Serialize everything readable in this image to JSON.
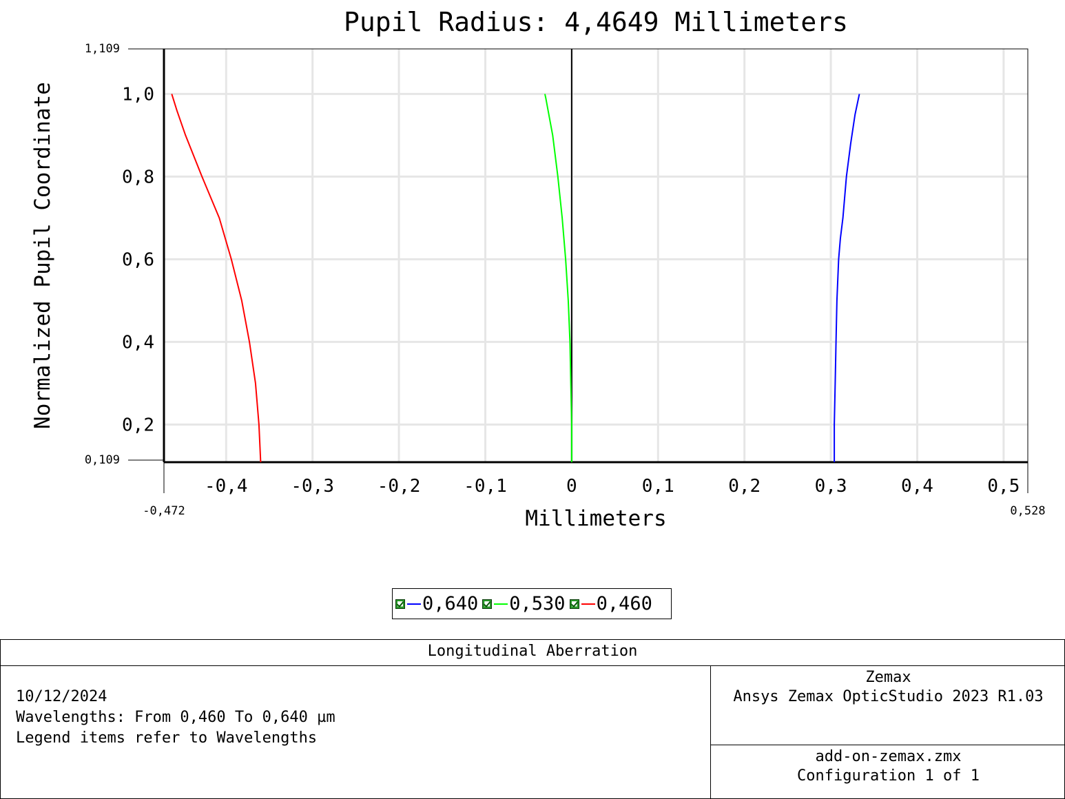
{
  "chart_data": {
    "type": "line",
    "title": "Pupil Radius: 4,4649 Millimeters",
    "xlabel": "Millimeters",
    "ylabel": "Normalized Pupil Coordinate",
    "xlim": [
      -0.472,
      0.528
    ],
    "ylim": [
      0.109,
      1.109
    ],
    "x_min_label": "-0,472",
    "x_max_label": "0,528",
    "y_min_label": "0,109",
    "y_max_label": "1,109",
    "x_ticks": [
      -0.4,
      -0.3,
      -0.2,
      -0.1,
      0,
      0.1,
      0.2,
      0.3,
      0.4,
      0.5
    ],
    "x_tick_labels": [
      "-0,4",
      "-0,3",
      "-0,2",
      "-0,1",
      "0",
      "0,1",
      "0,2",
      "0,3",
      "0,4",
      "0,5"
    ],
    "y_ticks": [
      0.2,
      0.4,
      0.6,
      0.8,
      1.0
    ],
    "y_tick_labels": [
      "0,2",
      "0,4",
      "0,6",
      "0,8",
      "1,0"
    ],
    "grid": true,
    "series": [
      {
        "name": "0,640",
        "color": "#0000ff",
        "x": [
          0.304,
          0.304,
          0.305,
          0.306,
          0.307,
          0.309,
          0.311,
          0.314,
          0.318,
          0.323,
          0.328,
          0.333
        ],
        "y": [
          0.109,
          0.2,
          0.3,
          0.4,
          0.5,
          0.6,
          0.65,
          0.7,
          0.8,
          0.88,
          0.95,
          1.0
        ]
      },
      {
        "name": "0,530",
        "color": "#00ff00",
        "x": [
          0.0,
          0.0,
          -0.001,
          -0.002,
          -0.004,
          -0.007,
          -0.011,
          -0.016,
          -0.022,
          -0.03,
          -0.031
        ],
        "y": [
          0.109,
          0.2,
          0.3,
          0.4,
          0.5,
          0.6,
          0.7,
          0.8,
          0.9,
          0.99,
          1.0
        ]
      },
      {
        "name": "0,460",
        "color": "#ff0000",
        "x": [
          -0.36,
          -0.362,
          -0.366,
          -0.373,
          -0.382,
          -0.394,
          -0.408,
          -0.428,
          -0.447,
          -0.457,
          -0.463
        ],
        "y": [
          0.109,
          0.2,
          0.3,
          0.4,
          0.5,
          0.6,
          0.7,
          0.8,
          0.9,
          0.96,
          1.0
        ]
      }
    ]
  },
  "legend": {
    "items": [
      {
        "label": "0,640",
        "color": "#0000ff"
      },
      {
        "label": "0,530",
        "color": "#00ff00"
      },
      {
        "label": "0,460",
        "color": "#ff0000"
      }
    ]
  },
  "footer": {
    "title": "Longitudinal Aberration",
    "date": "10/12/2024",
    "wavelengths": "Wavelengths: From 0,460 To 0,640 µm",
    "legend_note": "Legend items refer to Wavelengths",
    "company": "Zemax",
    "software": "Ansys Zemax OpticStudio 2023 R1.03",
    "file": "add-on-zemax.zmx",
    "configuration": "Configuration 1 of 1"
  }
}
